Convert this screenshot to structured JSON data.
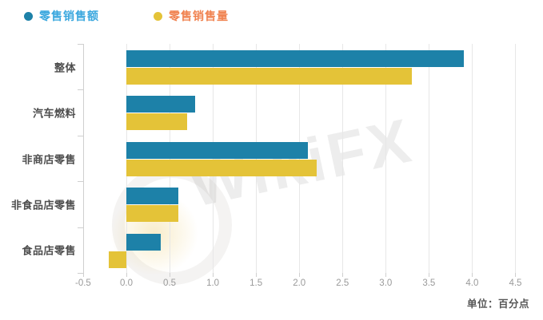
{
  "legend": [
    {
      "label": "零售销售额",
      "marker_color": "#1d81a8",
      "text_color": "#3aa7de"
    },
    {
      "label": "零售销售量",
      "marker_color": "#e4c338",
      "text_color": "#f0824f"
    }
  ],
  "unit_note": "单位：百分点",
  "watermark": {
    "text": "WikiFX"
  },
  "colors": {
    "series1": "#1d81a8",
    "series2": "#e4c338",
    "gridline": "#e7e7e7",
    "axis": "#cfcfcf",
    "tick_label": "#9a9a9a",
    "category_label": "#4d4d4d"
  },
  "chart_data": {
    "type": "bar",
    "orientation": "horizontal",
    "title": "",
    "xlabel": "",
    "ylabel": "",
    "unit": "百分点",
    "categories": [
      "整体",
      "汽车燃料",
      "非商店零售",
      "非食品店零售",
      "食品店零售"
    ],
    "series": [
      {
        "name": "零售销售额",
        "color": "#1d81a8",
        "values": [
          3.9,
          0.8,
          2.1,
          0.6,
          0.4
        ]
      },
      {
        "name": "零售销售量",
        "color": "#e4c338",
        "values": [
          3.3,
          0.7,
          2.2,
          0.6,
          -0.2
        ]
      }
    ],
    "x_ticks": [
      -0.5,
      0.0,
      0.5,
      1.0,
      1.5,
      2.0,
      2.5,
      3.0,
      3.5,
      4.0,
      4.5
    ],
    "x_tick_labels": [
      "-0.5",
      "0.0",
      "0.5",
      "1.0",
      "1.5",
      "2.0",
      "2.5",
      "3.0",
      "3.5",
      "4.0",
      "4.5"
    ],
    "xlim": [
      -0.5,
      4.5
    ],
    "grid": true,
    "legend_position": "top-left"
  }
}
